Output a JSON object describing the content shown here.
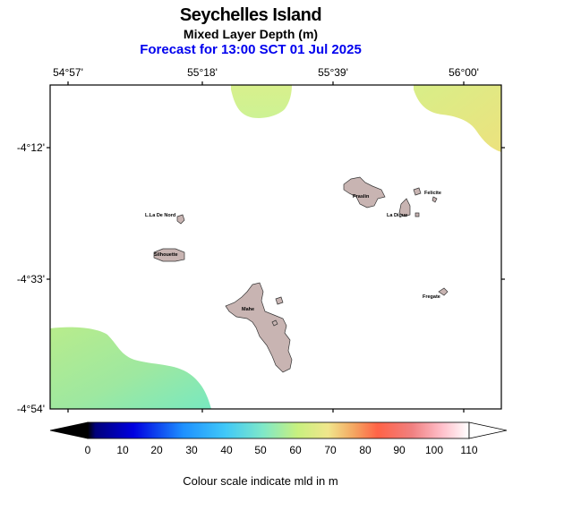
{
  "header": {
    "title": "Seychelles Island",
    "subtitle": "Mixed Layer Depth (m)",
    "forecast": "Forecast for  13:00 SCT 01 Jul 2025"
  },
  "axes": {
    "longitude_labels": [
      "54°57'",
      "55°18'",
      "55°39'",
      "56°00'"
    ],
    "latitude_labels": [
      "-4°12'",
      "-4°33'",
      "-4°54'"
    ]
  },
  "places": [
    "Praslin",
    "Felicite",
    "La Digue",
    "L.La De Nord",
    "Silhouette",
    "Mahe",
    "Fregate"
  ],
  "colorbar": {
    "ticks": [
      "0",
      "10",
      "20",
      "30",
      "40",
      "50",
      "60",
      "70",
      "80",
      "90",
      "100",
      "110"
    ],
    "caption": "Colour scale indicate mld in m",
    "colors": [
      "#000000",
      "#00008b",
      "#0000ff",
      "#1e90ff",
      "#40c4ff",
      "#7fffd4",
      "#c8f07f",
      "#f0e68c",
      "#f4a460",
      "#ff6347",
      "#f08080",
      "#ffc0cb",
      "#ffffff"
    ]
  },
  "colors": {
    "land": "#c8b4b2",
    "north_field": "#d8f08c",
    "northeast_field": "#e8e080",
    "southwest_field": "#a8e890"
  }
}
